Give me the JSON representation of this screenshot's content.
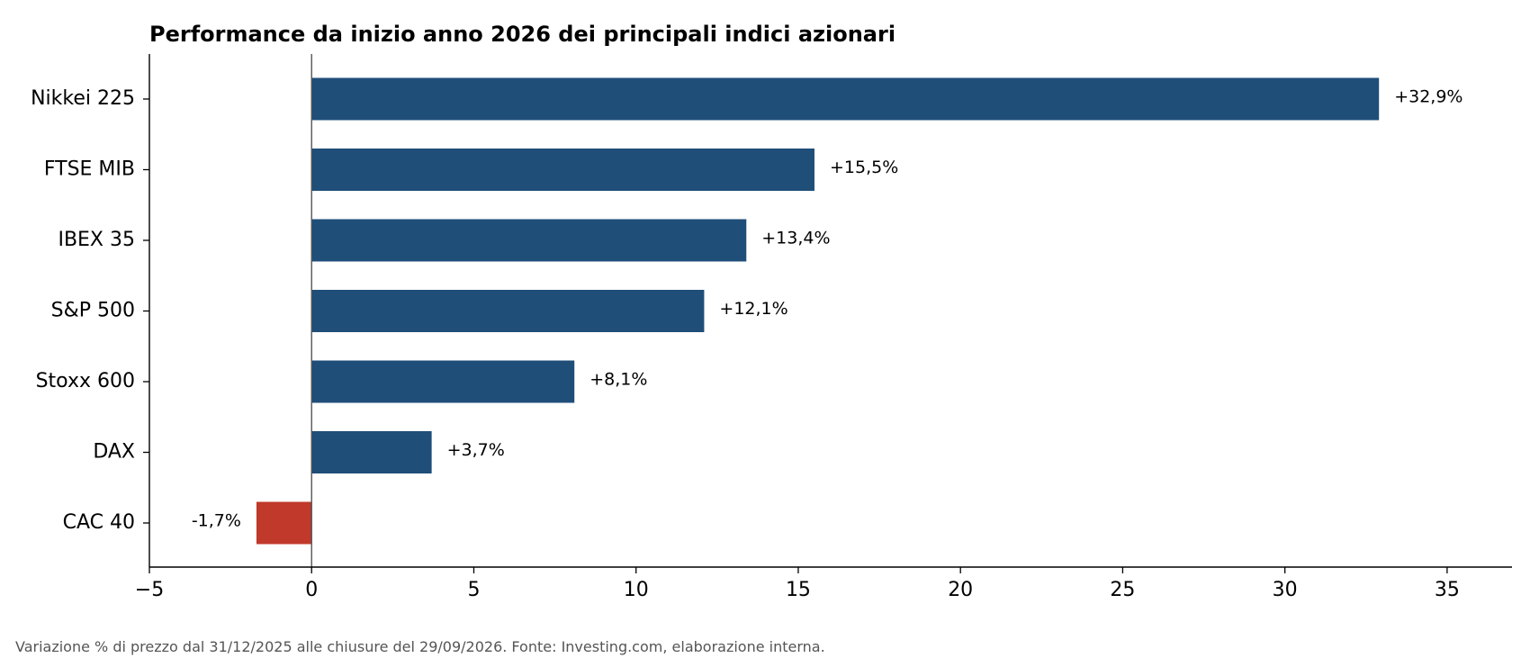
{
  "chart_data": {
    "type": "bar",
    "orientation": "horizontal",
    "title": "Performance da inizio anno 2026 dei principali indici azionari",
    "xlabel": "",
    "ylabel": "",
    "categories": [
      "Nikkei 225",
      "FTSE MIB",
      "IBEX 35",
      "S&P 500",
      "Stoxx 600",
      "DAX",
      "CAC 40"
    ],
    "values": [
      32.9,
      15.5,
      13.4,
      12.1,
      8.1,
      3.7,
      -1.7
    ],
    "value_labels": [
      "+32,9%",
      "+15,5%",
      "+13,4%",
      "+12,1%",
      "+8,1%",
      "+3,7%",
      "-1,7%"
    ],
    "xlim": [
      -5,
      37
    ],
    "xticks": [
      -5,
      0,
      5,
      10,
      15,
      20,
      25,
      30,
      35
    ],
    "xtick_labels": [
      "−5",
      "0",
      "5",
      "10",
      "15",
      "20",
      "25",
      "30",
      "35"
    ],
    "grid": false,
    "colors": {
      "positive": "#1f4e79",
      "negative": "#c0392b",
      "zero_line": "#555555"
    },
    "note": "Variazione % di prezzo dal 31/12/2025 alle chiusure del 29/09/2026. Fonte: Investing.com, elaborazione interna."
  }
}
